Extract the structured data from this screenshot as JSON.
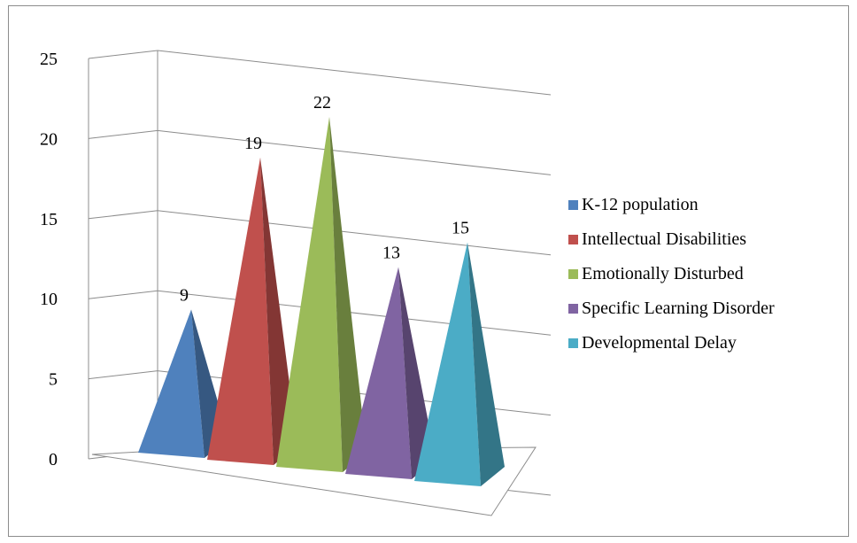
{
  "chart_data": {
    "type": "bar",
    "variant": "3d-pyramid",
    "title": "",
    "xlabel": "",
    "ylabel": "",
    "ylim": [
      0,
      25
    ],
    "yticks": [
      0,
      5,
      10,
      15,
      20,
      25
    ],
    "grid": true,
    "legend_position": "right",
    "series": [
      {
        "name": "K-12 population",
        "value": 9,
        "color": "#4f81bd"
      },
      {
        "name": "Intellectual Disabilities",
        "value": 19,
        "color": "#c0504d"
      },
      {
        "name": "Emotionally Disturbed",
        "value": 22,
        "color": "#9bbb59"
      },
      {
        "name": "Specific Learning Disorder",
        "value": 13,
        "color": "#8064a2"
      },
      {
        "name": "Developmental Delay",
        "value": 15,
        "color": "#4bacc6"
      }
    ]
  }
}
